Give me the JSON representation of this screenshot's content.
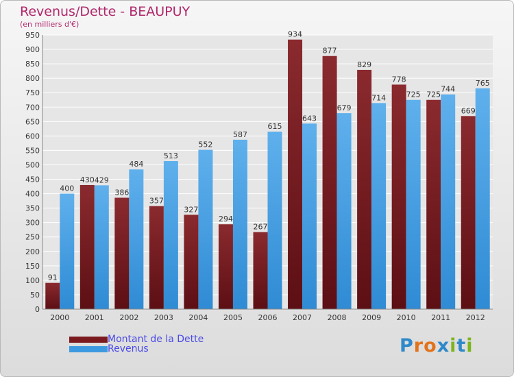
{
  "header": {
    "title": "Revenus/Dette - BEAUPUY",
    "subtitle": "(en milliers d'€)"
  },
  "colors": {
    "dette": "#7a1a1f",
    "revenus": "#3e9ae0",
    "title": "#b0286a",
    "legend_text": "#4a4ae8"
  },
  "logo": {
    "text": "Proxiti",
    "letter_colors": [
      "#2f89c9",
      "#e2731c",
      "#e2731c",
      "#2f89c9",
      "#7cb51c",
      "#2f89c9",
      "#7cb51c"
    ]
  },
  "chart_data": {
    "type": "bar",
    "categories": [
      "2000",
      "2001",
      "2002",
      "2003",
      "2004",
      "2005",
      "2006",
      "2007",
      "2008",
      "2009",
      "2010",
      "2011",
      "2012"
    ],
    "series": [
      {
        "name": "Montant de la Dette",
        "values": [
          91,
          430,
          386,
          357,
          327,
          294,
          267,
          934,
          877,
          829,
          778,
          725,
          669
        ]
      },
      {
        "name": "Revenus",
        "values": [
          400,
          429,
          484,
          513,
          552,
          587,
          615,
          643,
          679,
          714,
          725,
          744,
          765
        ]
      }
    ],
    "ylim": [
      0,
      950
    ],
    "yticks": [
      0,
      50,
      100,
      150,
      200,
      250,
      300,
      350,
      400,
      450,
      500,
      550,
      600,
      650,
      700,
      750,
      800,
      850,
      900,
      950
    ],
    "grid": true,
    "legend": "bottom-left"
  }
}
